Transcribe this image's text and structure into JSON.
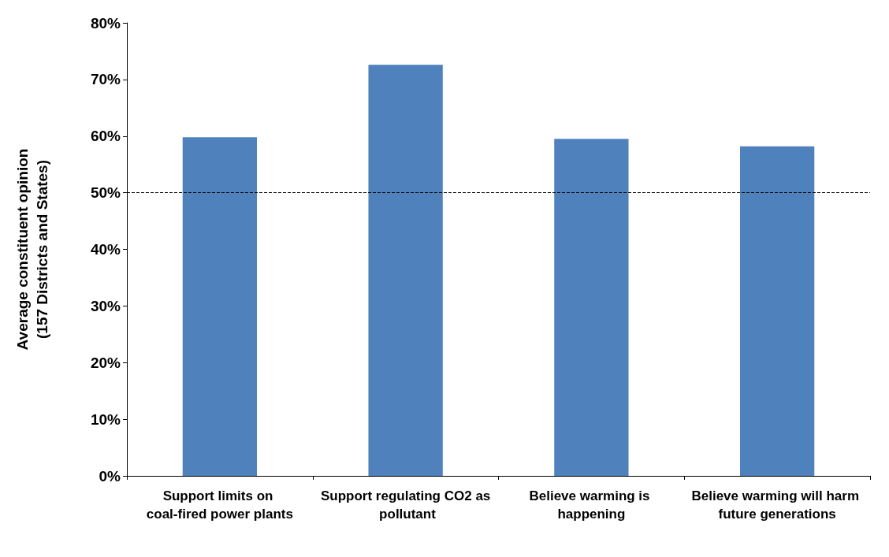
{
  "chart_data": {
    "type": "bar",
    "ylabel": "Average constituent opinion\n(157 Districts and States)",
    "categories": [
      "Support limits on coal-fired power plants",
      "Support regulating CO2 as pollutant",
      "Believe warming is happening",
      "Believe warming will harm future generations"
    ],
    "values": [
      59.8,
      72.6,
      59.5,
      58.2
    ],
    "color": "#4f81bd",
    "ylim": [
      0,
      80
    ],
    "yticks": [
      {
        "value": 0,
        "label": "0%"
      },
      {
        "value": 10,
        "label": "10%"
      },
      {
        "value": 20,
        "label": "20%"
      },
      {
        "value": 30,
        "label": "30%"
      },
      {
        "value": 40,
        "label": "40%"
      },
      {
        "value": 50,
        "label": "50%"
      },
      {
        "value": 60,
        "label": "60%"
      },
      {
        "value": 70,
        "label": "70%"
      },
      {
        "value": 80,
        "label": "80%"
      }
    ],
    "ref_lines": [
      {
        "axis": "y",
        "value": 50,
        "color": "#000000",
        "line_style": "dashed"
      }
    ],
    "grid": false
  }
}
